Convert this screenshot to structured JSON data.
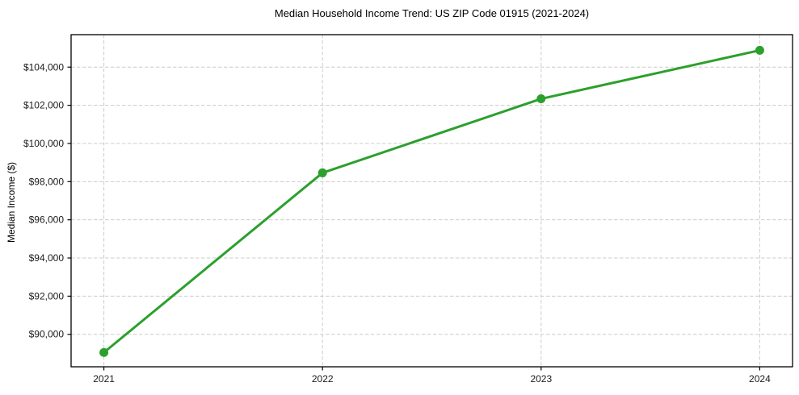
{
  "figure": {
    "title": "Median Household Income Trend: US ZIP Code 01915 (2021-2024)",
    "ylabel": "Median Income ($)"
  },
  "chart_data": {
    "type": "line",
    "title": "Median Household Income Trend: US ZIP Code 01915 (2021-2024)",
    "xlabel": "",
    "ylabel": "Median Income ($)",
    "categories": [
      "2021",
      "2022",
      "2023",
      "2024"
    ],
    "x": [
      2021,
      2022,
      2023,
      2024
    ],
    "series": [
      {
        "name": "Median Household Income",
        "values": [
          89050,
          98460,
          102340,
          104880
        ]
      }
    ],
    "y_ticks": [
      90000,
      92000,
      94000,
      96000,
      98000,
      100000,
      102000,
      104000
    ],
    "y_tick_labels": [
      "$90,000",
      "$92,000",
      "$94,000",
      "$96,000",
      "$98,000",
      "$100,000",
      "$102,000",
      "$104,000"
    ],
    "xlim": [
      2020.85,
      2024.15
    ],
    "ylim": [
      88300,
      105700
    ],
    "grid": true,
    "legend": "none",
    "colors": {
      "line": "#2ca02c",
      "marker": "#2ca02c",
      "grid": "#cccccc",
      "axis_border": "#000000",
      "tick_label": "#1a1a1a"
    }
  }
}
